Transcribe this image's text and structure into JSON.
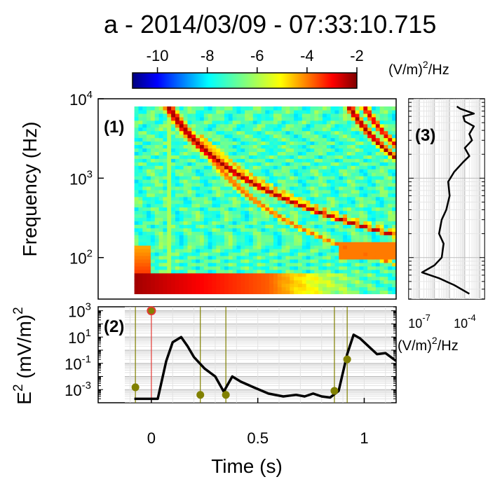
{
  "title": "a - 2014/03/09 - 07:33:10.715",
  "colorbar": {
    "ticks": [
      "-10",
      "-8",
      "-6",
      "-4",
      "-2"
    ],
    "range": [
      -11,
      -2
    ],
    "unit": "(V/m)",
    "unit_sup": "2",
    "unit_suffix": "/Hz"
  },
  "panels": {
    "p1": "(1)",
    "p2": "(2)",
    "p3": "(3)"
  },
  "chart_data": [
    {
      "type": "heatmap",
      "panel": "(1)",
      "ylabel": "Frequency (Hz)",
      "yscale": "log",
      "ylim": [
        30,
        10000
      ],
      "xlim": [
        -0.25,
        1.15
      ],
      "data_xlim": [
        -0.08,
        1.15
      ],
      "data_ylim": [
        35,
        8000
      ],
      "y_ticks": [
        {
          "base": "10",
          "exp": "2"
        },
        {
          "base": "10",
          "exp": "3"
        },
        {
          "base": "10",
          "exp": "4"
        }
      ],
      "background_level": -7,
      "features": [
        {
          "name": "low-frequency band",
          "freq_range_hz": [
            35,
            60
          ],
          "level": -3
        },
        {
          "name": "whistler 1",
          "onset_time_s": 0.08,
          "start_freq_hz": 8000,
          "end_freq_hz": 400,
          "level": -3
        },
        {
          "name": "whistler 2",
          "onset_time_s": 0.25,
          "start_freq_hz": 2500,
          "end_freq_hz": 150,
          "level": -4.5
        },
        {
          "name": "whistler 3",
          "onset_time_s": 0.93,
          "start_freq_hz": 8000,
          "end_freq_hz": 2000,
          "level": -3
        }
      ]
    },
    {
      "type": "line",
      "panel": "(2)",
      "xlabel": "Time (s)",
      "ylabel": "E",
      "ylabel_sup": "2",
      "ylabel_suffix": "(mV/m)",
      "ylabel_suffix_sup": "2",
      "yscale": "log",
      "ylim": [
        0.0001,
        2000
      ],
      "xlim": [
        -0.25,
        1.15
      ],
      "x_ticks": [
        "0",
        "0.5",
        "1"
      ],
      "y_ticks": [
        {
          "base": "10",
          "exp": "-3"
        },
        {
          "base": "10",
          "exp": "-1"
        },
        {
          "base": "10",
          "exp": "1"
        },
        {
          "base": "10",
          "exp": "3"
        }
      ],
      "grid": true,
      "series": [
        {
          "x": [
            -0.08,
            -0.03,
            0.03,
            0.07,
            0.1,
            0.14,
            0.17,
            0.2,
            0.25,
            0.3,
            0.34,
            0.38,
            0.42,
            0.48,
            0.55,
            0.62,
            0.68,
            0.72,
            0.76,
            0.8,
            0.84,
            0.88,
            0.92,
            0.95,
            0.98,
            1.02,
            1.06,
            1.1,
            1.15
          ],
          "y": [
            0.0002,
            0.0002,
            0.0002,
            0.15,
            4,
            10,
            2,
            0.3,
            0.04,
            0.01,
            0.0007,
            0.01,
            0.004,
            0.0015,
            0.0005,
            0.0003,
            0.0004,
            0.0003,
            0.0005,
            0.0003,
            0.00025,
            0.0008,
            0.5,
            15,
            8,
            2,
            0.5,
            0.6,
            0.15
          ]
        }
      ],
      "markers": [
        {
          "x": -0.075,
          "y": 0.0015
        },
        {
          "x": 0.23,
          "y": 0.0004
        },
        {
          "x": 0.35,
          "y": 0.0004
        },
        {
          "x": 0.86,
          "y": 0.0008
        },
        {
          "x": 0.92,
          "y": 0.2
        }
      ],
      "marker_color": "#808000",
      "red_marker": {
        "x": 0.0,
        "y": 1000
      },
      "red_color": "#e53935",
      "vlines_olive": [
        -0.075,
        0.23,
        0.35,
        0.86,
        0.92
      ],
      "vline_red": 0.0
    },
    {
      "type": "line",
      "panel": "(3)",
      "xscale": "log",
      "yscale": "log",
      "xlim": [
        2e-08,
        0.002
      ],
      "ylim": [
        30,
        10000
      ],
      "x_ticks": [
        {
          "base": "10",
          "exp": "-7"
        },
        {
          "base": "10",
          "exp": "-4"
        }
      ],
      "xlabel": "(V/m)",
      "xlabel_sup": "2",
      "xlabel_suffix": "/Hz",
      "series": [
        {
          "x": [
            0.0002,
            2e-05,
            2e-06,
            1.5e-07,
            1e-06,
            3e-06,
            4e-06,
            2e-06,
            3e-06,
            6e-06,
            1e-05,
            8e-06,
            2e-05,
            8e-05,
            0.0002,
            0.0001,
            0.0003,
            0.0002,
            0.0004,
            0.0001,
            8e-05,
            0.0004,
            5e-05,
            3e-05
          ],
          "y": [
            35,
            45,
            55,
            65,
            80,
            100,
            150,
            200,
            300,
            400,
            600,
            900,
            1200,
            1600,
            1900,
            2400,
            3000,
            3600,
            4500,
            5200,
            6000,
            6500,
            7500,
            8000
          ]
        }
      ]
    }
  ]
}
